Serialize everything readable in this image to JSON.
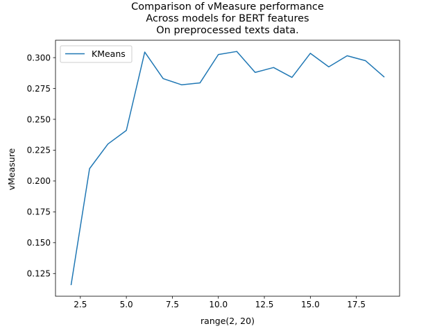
{
  "chart_data": {
    "type": "line",
    "title_lines": [
      "Comparison of vMeasure performance",
      "Across models for BERT features",
      "On preprocessed texts data."
    ],
    "xlabel": "range(2, 20)",
    "ylabel": "vMeasure",
    "xlim": [
      1.15,
      19.85
    ],
    "ylim": [
      0.1066,
      0.3141
    ],
    "x_ticks": [
      2.5,
      5.0,
      7.5,
      10.0,
      12.5,
      15.0,
      17.5
    ],
    "x_tick_labels": [
      "2.5",
      "5.0",
      "7.5",
      "10.0",
      "12.5",
      "15.0",
      "17.5"
    ],
    "y_ticks": [
      0.125,
      0.15,
      0.175,
      0.2,
      0.225,
      0.25,
      0.275,
      0.3
    ],
    "y_tick_labels": [
      "0.125",
      "0.150",
      "0.175",
      "0.200",
      "0.225",
      "0.250",
      "0.275",
      "0.300"
    ],
    "grid": false,
    "legend": {
      "position": "top-left",
      "entries": [
        "KMeans"
      ]
    },
    "series": [
      {
        "name": "KMeans",
        "color": "#1f77b4",
        "x": [
          2,
          3,
          4,
          5,
          6,
          7,
          8,
          9,
          10,
          11,
          12,
          13,
          14,
          15,
          16,
          17,
          18,
          19
        ],
        "y": [
          0.116,
          0.21,
          0.23,
          0.241,
          0.3045,
          0.283,
          0.278,
          0.2795,
          0.3025,
          0.305,
          0.288,
          0.292,
          0.284,
          0.3035,
          0.2925,
          0.3015,
          0.2975,
          0.2845
        ]
      }
    ]
  }
}
